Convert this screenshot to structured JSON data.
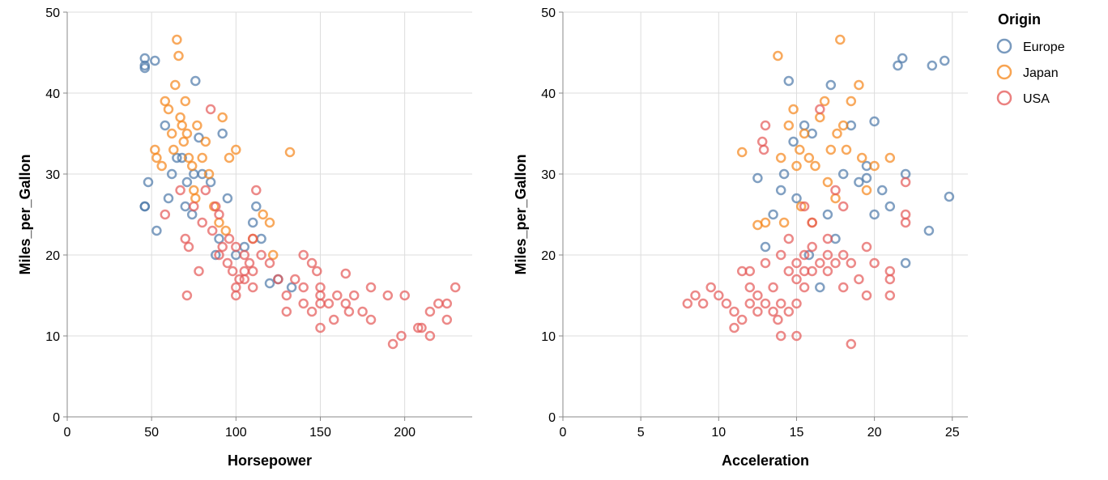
{
  "chart_data": [
    {
      "type": "scatter",
      "xlabel": "Horsepower",
      "ylabel": "Miles_per_Gallon",
      "xlim": [
        0,
        240
      ],
      "ylim": [
        0,
        50
      ],
      "xticks": [
        0,
        50,
        100,
        150,
        200
      ],
      "yticks": [
        0,
        10,
        20,
        30,
        40,
        50
      ],
      "grid": true,
      "series": [
        {
          "name": "Europe",
          "color": "#4c78a8",
          "points": [
            [
              46,
              26
            ],
            [
              46,
              26
            ],
            [
              46,
              43.1
            ],
            [
              46,
              44.3
            ],
            [
              46,
              43.4
            ],
            [
              48,
              29
            ],
            [
              52,
              44
            ],
            [
              53,
              23
            ],
            [
              58,
              36
            ],
            [
              60,
              27
            ],
            [
              62,
              30
            ],
            [
              65,
              32
            ],
            [
              68,
              32
            ],
            [
              70,
              26
            ],
            [
              71,
              29
            ],
            [
              74,
              25
            ],
            [
              75,
              30
            ],
            [
              76,
              41.5
            ],
            [
              78,
              34.5
            ],
            [
              80,
              30
            ],
            [
              85,
              29
            ],
            [
              88,
              20
            ],
            [
              90,
              22
            ],
            [
              92,
              35
            ],
            [
              95,
              27
            ],
            [
              100,
              20
            ],
            [
              105,
              21
            ],
            [
              110,
              24
            ],
            [
              112,
              26
            ],
            [
              115,
              22
            ],
            [
              120,
              16.5
            ],
            [
              125,
              17
            ],
            [
              133,
              16
            ]
          ]
        },
        {
          "name": "Japan",
          "color": "#f58518",
          "points": [
            [
              52,
              33
            ],
            [
              53,
              32
            ],
            [
              56,
              31
            ],
            [
              58,
              39
            ],
            [
              60,
              38
            ],
            [
              62,
              35
            ],
            [
              63,
              33
            ],
            [
              64,
              41
            ],
            [
              65,
              46.6
            ],
            [
              66,
              44.6
            ],
            [
              67,
              37
            ],
            [
              68,
              36
            ],
            [
              69,
              34
            ],
            [
              70,
              39
            ],
            [
              71,
              35
            ],
            [
              72,
              32
            ],
            [
              74,
              31
            ],
            [
              75,
              28
            ],
            [
              76,
              27
            ],
            [
              77,
              36
            ],
            [
              80,
              32
            ],
            [
              82,
              34
            ],
            [
              84,
              30
            ],
            [
              87,
              26
            ],
            [
              90,
              24
            ],
            [
              92,
              37
            ],
            [
              94,
              23
            ],
            [
              96,
              32
            ],
            [
              100,
              33
            ],
            [
              110,
              22
            ],
            [
              116,
              25
            ],
            [
              120,
              24
            ],
            [
              122,
              20
            ],
            [
              132,
              32.7
            ]
          ]
        },
        {
          "name": "USA",
          "color": "#e45756",
          "points": [
            [
              58,
              25
            ],
            [
              67,
              28
            ],
            [
              70,
              22
            ],
            [
              71,
              15
            ],
            [
              72,
              21
            ],
            [
              75,
              26
            ],
            [
              78,
              18
            ],
            [
              80,
              24
            ],
            [
              82,
              28
            ],
            [
              85,
              38
            ],
            [
              86,
              23
            ],
            [
              88,
              26
            ],
            [
              90,
              25
            ],
            [
              90,
              20
            ],
            [
              92,
              21
            ],
            [
              95,
              19
            ],
            [
              96,
              22
            ],
            [
              98,
              18
            ],
            [
              100,
              21
            ],
            [
              100,
              16
            ],
            [
              100,
              15
            ],
            [
              102,
              17
            ],
            [
              105,
              20
            ],
            [
              105,
              18
            ],
            [
              105,
              17
            ],
            [
              108,
              19
            ],
            [
              110,
              22
            ],
            [
              110,
              16
            ],
            [
              110,
              18
            ],
            [
              112,
              28
            ],
            [
              115,
              20
            ],
            [
              120,
              19
            ],
            [
              125,
              17
            ],
            [
              130,
              13
            ],
            [
              130,
              15
            ],
            [
              135,
              17
            ],
            [
              140,
              20
            ],
            [
              140,
              16
            ],
            [
              140,
              14
            ],
            [
              145,
              13
            ],
            [
              145,
              19
            ],
            [
              148,
              18
            ],
            [
              150,
              15
            ],
            [
              150,
              14
            ],
            [
              150,
              11
            ],
            [
              150,
              16
            ],
            [
              155,
              14
            ],
            [
              158,
              12
            ],
            [
              160,
              15
            ],
            [
              165,
              17.7
            ],
            [
              165,
              14
            ],
            [
              167,
              13
            ],
            [
              170,
              15
            ],
            [
              175,
              13
            ],
            [
              180,
              16
            ],
            [
              180,
              12
            ],
            [
              190,
              15
            ],
            [
              193,
              9
            ],
            [
              198,
              10
            ],
            [
              200,
              15
            ],
            [
              208,
              11
            ],
            [
              210,
              11
            ],
            [
              215,
              10
            ],
            [
              215,
              13
            ],
            [
              220,
              14
            ],
            [
              225,
              14
            ],
            [
              225,
              12
            ],
            [
              230,
              16
            ]
          ]
        }
      ]
    },
    {
      "type": "scatter",
      "xlabel": "Acceleration",
      "ylabel": "Miles_per_Gallon",
      "xlim": [
        0,
        26
      ],
      "ylim": [
        0,
        50
      ],
      "xticks": [
        0,
        5,
        10,
        15,
        20,
        25
      ],
      "yticks": [
        0,
        10,
        20,
        30,
        40,
        50
      ],
      "grid": true,
      "series": [
        {
          "name": "Europe",
          "color": "#4c78a8",
          "points": [
            [
              12.5,
              29.5
            ],
            [
              13,
              21
            ],
            [
              13.5,
              25
            ],
            [
              14,
              28
            ],
            [
              14.2,
              30
            ],
            [
              14.5,
              41.5
            ],
            [
              14.8,
              34
            ],
            [
              15,
              27
            ],
            [
              15.5,
              36
            ],
            [
              15.8,
              20
            ],
            [
              16,
              35
            ],
            [
              16.5,
              16
            ],
            [
              17,
              25
            ],
            [
              17.2,
              41
            ],
            [
              17.5,
              22
            ],
            [
              18,
              30
            ],
            [
              18.5,
              36
            ],
            [
              19,
              29
            ],
            [
              19.5,
              31
            ],
            [
              19.5,
              29.5
            ],
            [
              20,
              36.5
            ],
            [
              20,
              25
            ],
            [
              20.5,
              28
            ],
            [
              21,
              26
            ],
            [
              21.5,
              43.4
            ],
            [
              21.8,
              44.3
            ],
            [
              22,
              30
            ],
            [
              22,
              19
            ],
            [
              23.5,
              23
            ],
            [
              23.7,
              43.4
            ],
            [
              24.5,
              44
            ],
            [
              24.8,
              27.2
            ]
          ]
        },
        {
          "name": "Japan",
          "color": "#f58518",
          "points": [
            [
              11.5,
              32.7
            ],
            [
              12.5,
              23.7
            ],
            [
              13,
              24
            ],
            [
              13.8,
              44.6
            ],
            [
              14,
              32
            ],
            [
              14.5,
              36
            ],
            [
              14.8,
              38
            ],
            [
              15,
              31
            ],
            [
              15.2,
              33
            ],
            [
              15.5,
              35
            ],
            [
              15.8,
              32
            ],
            [
              16,
              24
            ],
            [
              16.5,
              37
            ],
            [
              16.8,
              39
            ],
            [
              17,
              29
            ],
            [
              17.2,
              33
            ],
            [
              17.5,
              27
            ],
            [
              17.8,
              46.6
            ],
            [
              18,
              36
            ],
            [
              18.5,
              39
            ],
            [
              19,
              41
            ],
            [
              19.2,
              32
            ],
            [
              19.5,
              28
            ],
            [
              20,
              31
            ],
            [
              21,
              32
            ],
            [
              15.3,
              26
            ],
            [
              16.2,
              31
            ],
            [
              14.2,
              24
            ],
            [
              18.2,
              33
            ],
            [
              17.6,
              35
            ]
          ]
        },
        {
          "name": "USA",
          "color": "#e45756",
          "points": [
            [
              8,
              14
            ],
            [
              8.5,
              15
            ],
            [
              9,
              14
            ],
            [
              9.5,
              16
            ],
            [
              10,
              15
            ],
            [
              10.5,
              14
            ],
            [
              11,
              13
            ],
            [
              11,
              11
            ],
            [
              11.5,
              18
            ],
            [
              11.5,
              12
            ],
            [
              12,
              14
            ],
            [
              12,
              16
            ],
            [
              12.5,
              13
            ],
            [
              12.5,
              15
            ],
            [
              13,
              14
            ],
            [
              13,
              19
            ],
            [
              13,
              36
            ],
            [
              13.5,
              13
            ],
            [
              13.5,
              16
            ],
            [
              14,
              10
            ],
            [
              14,
              14
            ],
            [
              14,
              20
            ],
            [
              14.5,
              18
            ],
            [
              14.5,
              22
            ],
            [
              14.5,
              13
            ],
            [
              15,
              17
            ],
            [
              15,
              19
            ],
            [
              15,
              10
            ],
            [
              15,
              14
            ],
            [
              15.5,
              20
            ],
            [
              15.5,
              18
            ],
            [
              15.5,
              26
            ],
            [
              15.5,
              16
            ],
            [
              16,
              18
            ],
            [
              16,
              24
            ],
            [
              16,
              21
            ],
            [
              16.5,
              19
            ],
            [
              16.5,
              38
            ],
            [
              17,
              20
            ],
            [
              17,
              18
            ],
            [
              17,
              22
            ],
            [
              17.5,
              19
            ],
            [
              17.5,
              28
            ],
            [
              18,
              16
            ],
            [
              18,
              20
            ],
            [
              18,
              26
            ],
            [
              18.5,
              9
            ],
            [
              18.5,
              19
            ],
            [
              19,
              17
            ],
            [
              19.5,
              15
            ],
            [
              19.5,
              21
            ],
            [
              20,
              19
            ],
            [
              21,
              15
            ],
            [
              21,
              17
            ],
            [
              21,
              18
            ],
            [
              22,
              25
            ],
            [
              22,
              24
            ],
            [
              22,
              29
            ],
            [
              12,
              18
            ],
            [
              13.8,
              12
            ],
            [
              12.8,
              34
            ],
            [
              12.9,
              33
            ]
          ]
        }
      ]
    }
  ],
  "legend": {
    "title": "Origin",
    "placement": "top-right",
    "items": [
      {
        "label": "Europe",
        "color": "#4c78a8"
      },
      {
        "label": "Japan",
        "color": "#f58518"
      },
      {
        "label": "USA",
        "color": "#e45756"
      }
    ]
  }
}
